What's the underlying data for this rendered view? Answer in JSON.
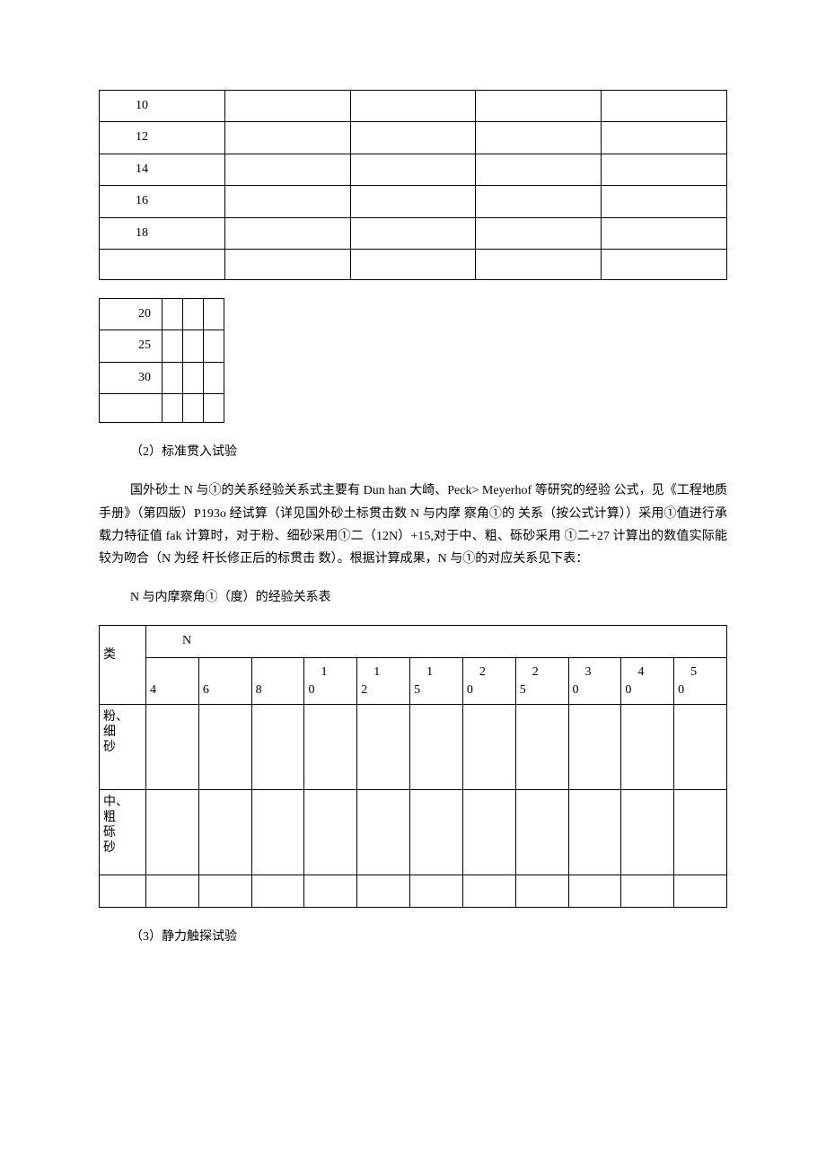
{
  "table1": {
    "rows": [
      "10",
      "12",
      "14",
      "16",
      "18",
      ""
    ]
  },
  "table2": {
    "rows": [
      "20",
      "25",
      "30",
      ""
    ]
  },
  "section2_title": "（2）标准贯入试验",
  "section2_body": "国外砂土 N 与①的关系经验关系式主要有 Dun han 大崎、Peck> Meyerhof 等研究的经验 公式，见《工程地质手册》（第四版）P193o 经试算（详见国外砂土标贯击数 N 与内摩 察角①的 关系（按公式计算））采用①值进行承载力特征值 fak 计算时，对于粉、细砂采用①二（12N）+15,对于中、粗、砾砂采用 ①二+27 计算出的数值实际能较为吻合（N 为经 杆长修正后的标贯击 数）。根据计算成果，N 与①的对应关系见下表：",
  "table3_caption": "N 与内摩察角①（度）的经验关系表",
  "table3": {
    "col_header_label": "N",
    "row_type_header": "类",
    "columns_top": [
      "",
      "",
      "",
      "1",
      "1",
      "1",
      "2",
      "2",
      "3",
      "4",
      "5"
    ],
    "columns_bottom": [
      "4",
      "6",
      "8",
      "0",
      "2",
      "5",
      "0",
      "5",
      "0",
      "0",
      "0"
    ],
    "row1_label": "粉、细砂",
    "row2_label": "中、粗砾砂"
  },
  "section3_title": "（3）静力触探试验"
}
